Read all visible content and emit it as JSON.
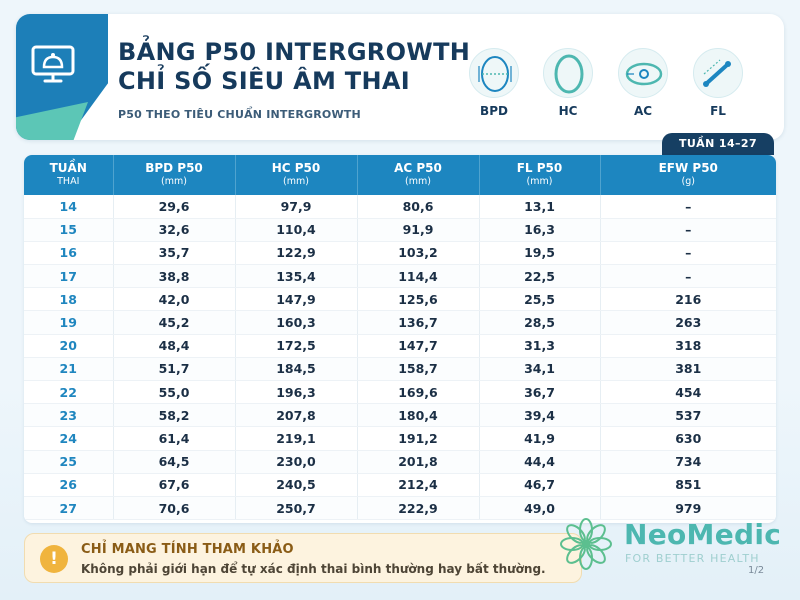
{
  "header": {
    "title_line1": "BẢNG P50 INTERGROWTH",
    "title_line2": "CHỈ SỐ SIÊU ÂM THAI",
    "subtitle": "P50 THEO TIÊU CHUẨN INTERGROWTH",
    "measures": [
      {
        "label": "BPD",
        "icon": "fetal-head-bpd-icon"
      },
      {
        "label": "HC",
        "icon": "head-circumference-icon"
      },
      {
        "label": "AC",
        "icon": "abdominal-circumference-icon"
      },
      {
        "label": "FL",
        "icon": "femur-length-icon"
      }
    ],
    "logo_icon": "monitor-ultrasound-icon"
  },
  "week_range_tag": "TUẦN 14–27",
  "table": {
    "headers": [
      {
        "title": "TUẦN",
        "unit": "THAI"
      },
      {
        "title": "BPD P50",
        "unit": "(mm)"
      },
      {
        "title": "HC P50",
        "unit": "(mm)"
      },
      {
        "title": "AC P50",
        "unit": "(mm)"
      },
      {
        "title": "FL P50",
        "unit": "(mm)"
      },
      {
        "title": "EFW P50",
        "unit": "(g)"
      }
    ],
    "rows": [
      [
        "14",
        "29,6",
        "97,9",
        "80,6",
        "13,1",
        "–"
      ],
      [
        "15",
        "32,6",
        "110,4",
        "91,9",
        "16,3",
        "–"
      ],
      [
        "16",
        "35,7",
        "122,9",
        "103,2",
        "19,5",
        "–"
      ],
      [
        "17",
        "38,8",
        "135,4",
        "114,4",
        "22,5",
        "–"
      ],
      [
        "18",
        "42,0",
        "147,9",
        "125,6",
        "25,5",
        "216"
      ],
      [
        "19",
        "45,2",
        "160,3",
        "136,7",
        "28,5",
        "263"
      ],
      [
        "20",
        "48,4",
        "172,5",
        "147,7",
        "31,3",
        "318"
      ],
      [
        "21",
        "51,7",
        "184,5",
        "158,7",
        "34,1",
        "381"
      ],
      [
        "22",
        "55,0",
        "196,3",
        "169,6",
        "36,7",
        "454"
      ],
      [
        "23",
        "58,2",
        "207,8",
        "180,4",
        "39,4",
        "537"
      ],
      [
        "24",
        "61,4",
        "219,1",
        "191,2",
        "41,9",
        "630"
      ],
      [
        "25",
        "64,5",
        "230,0",
        "201,8",
        "44,4",
        "734"
      ],
      [
        "26",
        "67,6",
        "240,5",
        "212,4",
        "46,7",
        "851"
      ],
      [
        "27",
        "70,6",
        "250,7",
        "222,9",
        "49,0",
        "979"
      ]
    ]
  },
  "note": {
    "icon_symbol": "!",
    "title": "CHỈ MANG TÍNH THAM KHẢO",
    "text": "Không phải giới hạn để tự xác định thai bình thường hay bất thường."
  },
  "brand": {
    "name": "NeoMedic",
    "tagline": "FOR BETTER HEALTH",
    "icon": "flower-logo-icon"
  },
  "page_number": "1/2",
  "colors": {
    "primary": "#1d86c0",
    "navy": "#163f63",
    "teal": "#4db7b0",
    "note_bg": "#fdf3df"
  }
}
